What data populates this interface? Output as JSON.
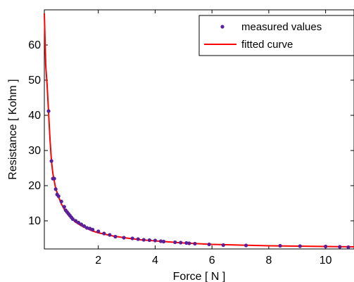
{
  "chart_data": {
    "type": "scatter",
    "xlabel": "Force [ N ]",
    "ylabel": "Resistance [ Kohm ]",
    "xlim": [
      0.1,
      11
    ],
    "ylim": [
      2,
      70
    ],
    "xticks": [
      2,
      4,
      6,
      8,
      10
    ],
    "yticks": [
      10,
      20,
      30,
      40,
      50,
      60
    ],
    "grid": false,
    "legend_position": "top-right",
    "series": [
      {
        "name": "measured values",
        "kind": "markers",
        "color": "#5b1f9a",
        "x": [
          0.25,
          0.35,
          0.4,
          0.45,
          0.5,
          0.55,
          0.6,
          0.7,
          0.8,
          0.85,
          0.9,
          0.95,
          1.0,
          1.05,
          1.1,
          1.2,
          1.3,
          1.4,
          1.5,
          1.6,
          1.7,
          1.8,
          2.0,
          2.2,
          2.4,
          2.6,
          2.9,
          3.2,
          3.4,
          3.6,
          3.8,
          4.0,
          4.2,
          4.3,
          4.7,
          4.9,
          5.1,
          5.2,
          5.4,
          5.9,
          6.4,
          7.2,
          8.4,
          9.1,
          10.0,
          10.5,
          10.8
        ],
        "y": [
          41.2,
          27.0,
          22.0,
          22.0,
          19.0,
          17.5,
          17.0,
          15.5,
          14.0,
          13.0,
          12.5,
          12.0,
          11.5,
          11.0,
          10.5,
          10.0,
          9.5,
          9.0,
          8.5,
          8.0,
          7.8,
          7.5,
          7.0,
          6.4,
          6.0,
          5.5,
          5.2,
          5.0,
          4.8,
          4.6,
          4.5,
          4.4,
          4.2,
          4.1,
          3.9,
          3.8,
          3.7,
          3.6,
          3.5,
          3.3,
          3.1,
          3.0,
          2.9,
          2.8,
          2.7,
          2.6,
          2.5
        ]
      },
      {
        "name": "fitted curve",
        "kind": "line",
        "color": "#ff0000",
        "x": [
          0.1,
          0.15,
          0.2,
          0.25,
          0.3,
          0.35,
          0.4,
          0.5,
          0.6,
          0.7,
          0.8,
          0.9,
          1.0,
          1.2,
          1.4,
          1.6,
          1.8,
          2.0,
          2.5,
          3.0,
          3.5,
          4.0,
          5.0,
          6.0,
          7.0,
          8.0,
          9.0,
          10.0,
          11.0
        ],
        "y": [
          69.0,
          54.0,
          48.5,
          40.5,
          33.0,
          27.0,
          23.5,
          19.2,
          16.8,
          14.8,
          13.3,
          12.1,
          11.1,
          9.6,
          8.6,
          7.8,
          7.1,
          6.6,
          5.7,
          5.1,
          4.6,
          4.3,
          3.7,
          3.3,
          3.1,
          2.9,
          2.8,
          2.7,
          2.6
        ]
      }
    ]
  }
}
